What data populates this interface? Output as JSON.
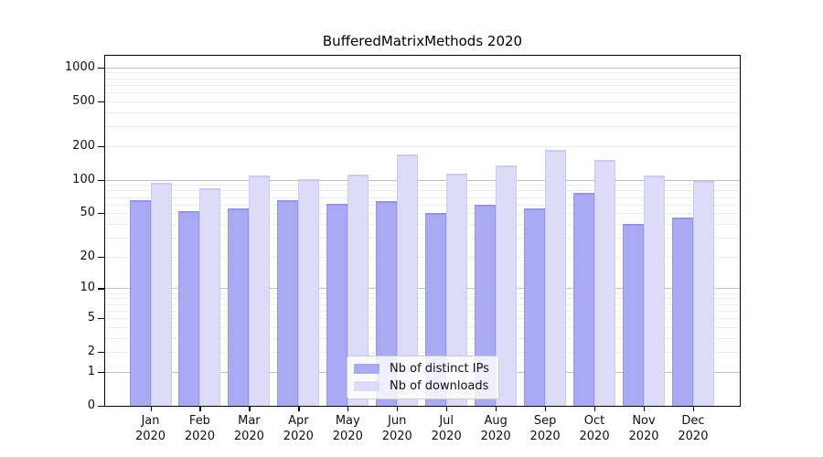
{
  "chart_data": {
    "type": "bar",
    "title": "BufferedMatrixMethods 2020",
    "categories": [
      "Jan",
      "Feb",
      "Mar",
      "Apr",
      "May",
      "Jun",
      "Jul",
      "Aug",
      "Sep",
      "Oct",
      "Nov",
      "Dec"
    ],
    "category_year": "2020",
    "series": [
      {
        "name": "Nb of distinct IPs",
        "color": "#a9a9f4",
        "edge_color": "#9494e8",
        "values": [
          65,
          52,
          55,
          65,
          61,
          64,
          50,
          60,
          55,
          77,
          40,
          46
        ]
      },
      {
        "name": "Nb of downloads",
        "color": "#dcdcf8",
        "edge_color": "#cbcbf0",
        "values": [
          94,
          84,
          109,
          101,
          111,
          169,
          114,
          135,
          186,
          150,
          110,
          98
        ]
      }
    ],
    "yscale": "log10(1+x)",
    "yticks": [
      0,
      1,
      2,
      5,
      10,
      20,
      50,
      100,
      200,
      500,
      1000
    ],
    "ylim": [
      0,
      1280
    ],
    "xlabel": "",
    "ylabel": "",
    "grid": true,
    "legend_position": "bottom-center"
  },
  "colors": {
    "background": "#ffffff",
    "grid_minor": "#ececec",
    "grid_decade": "#c0c0c0",
    "axis": "#000000",
    "text": "#111111"
  }
}
